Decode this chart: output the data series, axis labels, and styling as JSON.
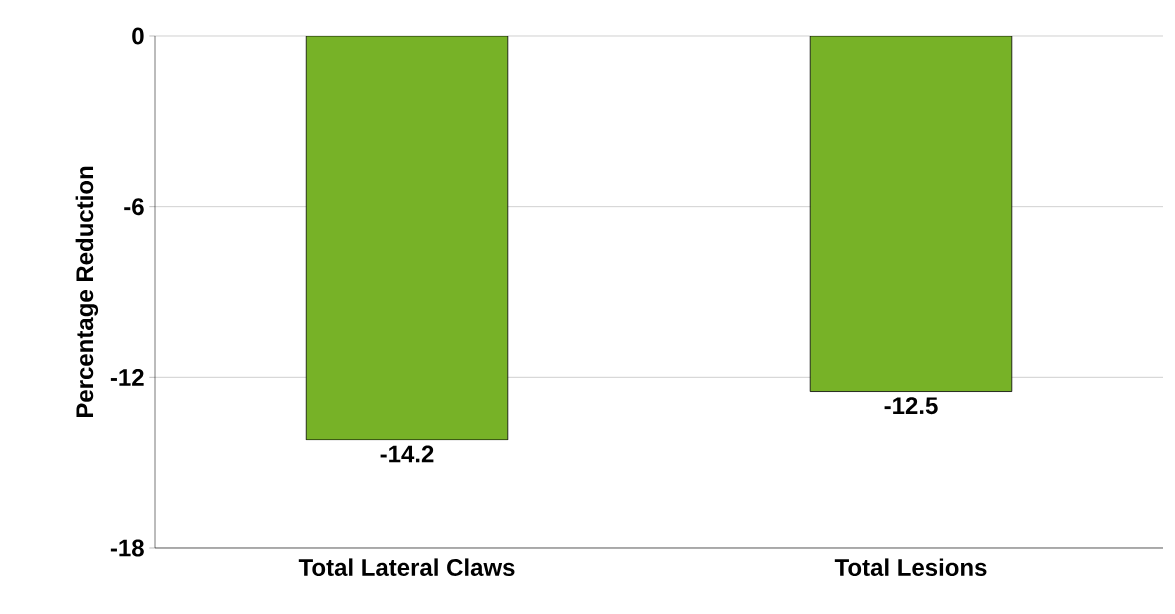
{
  "chart_data": {
    "type": "bar",
    "ylabel": "Percentage Reduction",
    "categories": [
      "Total Lateral Claws",
      "Total Lesions"
    ],
    "values": [
      -14.2,
      -12.5
    ],
    "color": "#77b227",
    "ylim": [
      -18,
      0
    ],
    "yticks": [
      -18,
      -12,
      -6,
      0
    ],
    "grid": "y",
    "data_labels": true
  }
}
